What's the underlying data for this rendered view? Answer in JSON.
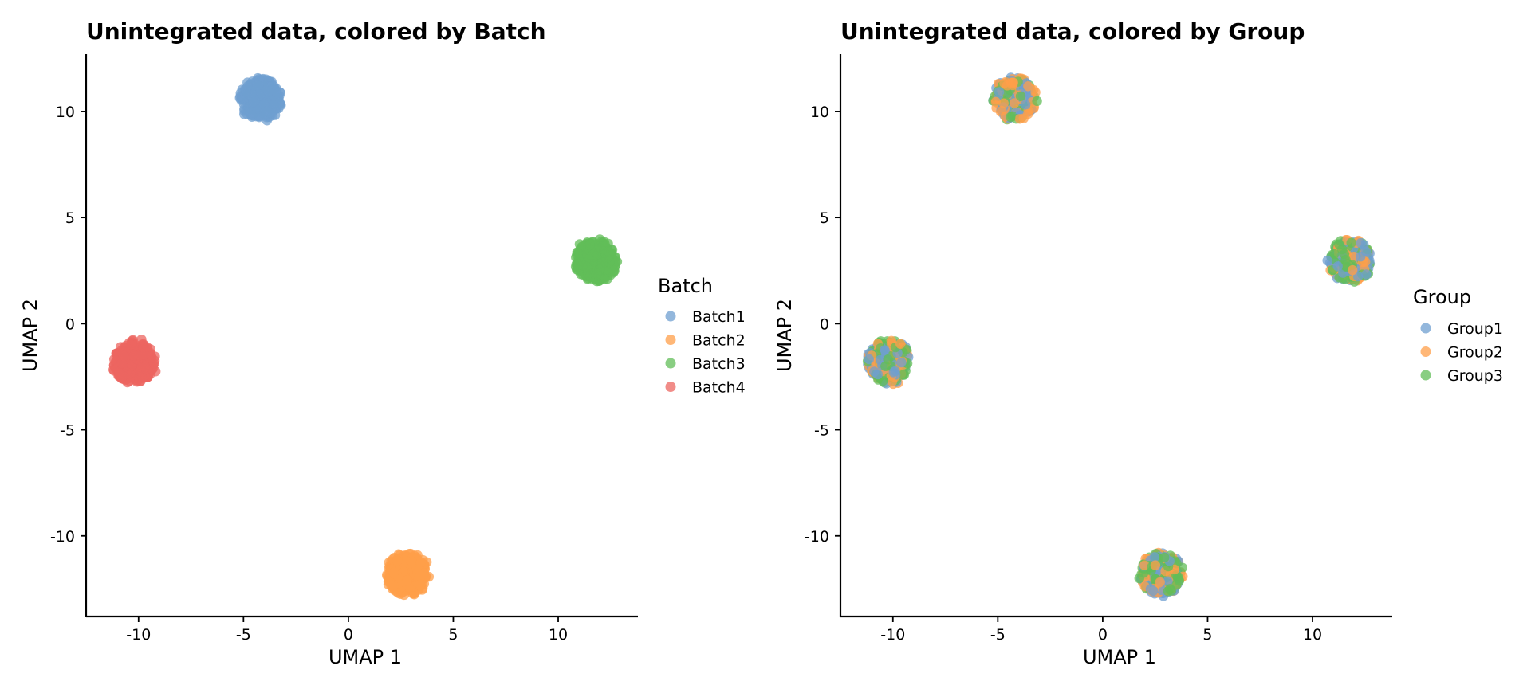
{
  "chart_data": [
    {
      "type": "scatter",
      "title": "Unintegrated data, colored by Batch",
      "xlabel": "UMAP 1",
      "ylabel": "UMAP 2",
      "xlim": [
        -12.5,
        13.8
      ],
      "ylim": [
        -13.8,
        12.7
      ],
      "xticks": [
        -10,
        -5,
        0,
        5,
        10
      ],
      "yticks": [
        -10,
        -5,
        0,
        5,
        10
      ],
      "xtick_labels": [
        "-10",
        "-5",
        "0",
        "5",
        "10"
      ],
      "ytick_labels": [
        "-10",
        "-5",
        "0",
        "5",
        "10"
      ],
      "grid": false,
      "legend": {
        "title": "Batch",
        "placement": "right"
      },
      "series": [
        {
          "name": "Batch1",
          "color": "#6f9fd0",
          "center": [
            -4.2,
            10.6
          ],
          "spread": [
            0.85,
            0.85
          ]
        },
        {
          "name": "Batch2",
          "color": "#ff9f4a",
          "center": [
            2.8,
            -11.8
          ],
          "spread": [
            0.85,
            0.85
          ]
        },
        {
          "name": "Batch3",
          "color": "#62bd58",
          "center": [
            11.8,
            3.0
          ],
          "spread": [
            0.85,
            0.85
          ]
        },
        {
          "name": "Batch4",
          "color": "#ec6560",
          "center": [
            -10.2,
            -1.8
          ],
          "spread": [
            0.85,
            0.85
          ]
        }
      ]
    },
    {
      "type": "scatter",
      "title": "Unintegrated data, colored by Group",
      "xlabel": "UMAP 1",
      "ylabel": "UMAP 2",
      "xlim": [
        -12.5,
        13.8
      ],
      "ylim": [
        -13.8,
        12.7
      ],
      "xticks": [
        -10,
        -5,
        0,
        5,
        10
      ],
      "yticks": [
        -10,
        -5,
        0,
        5,
        10
      ],
      "xtick_labels": [
        "-10",
        "-5",
        "0",
        "5",
        "10"
      ],
      "ytick_labels": [
        "-10",
        "-5",
        "0",
        "5",
        "10"
      ],
      "grid": false,
      "legend": {
        "title": "Group",
        "placement": "right"
      },
      "cluster_centers": [
        [
          -4.2,
          10.6
        ],
        [
          2.8,
          -11.8
        ],
        [
          11.8,
          3.0
        ],
        [
          -10.2,
          -1.8
        ]
      ],
      "cluster_spread": [
        0.85,
        0.85
      ],
      "series": [
        {
          "name": "Group1",
          "color": "#6f9fd0"
        },
        {
          "name": "Group2",
          "color": "#ff9f4a"
        },
        {
          "name": "Group3",
          "color": "#62bd58"
        }
      ]
    }
  ]
}
